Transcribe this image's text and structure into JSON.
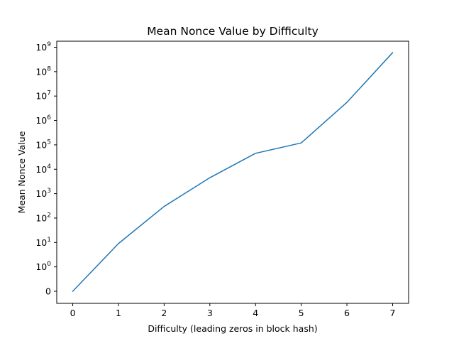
{
  "chart_data": {
    "type": "line",
    "title": "Mean Nonce Value by Difficulty",
    "xlabel": "Difficulty (leading zeros in block hash)",
    "ylabel": "Mean Nonce Value",
    "yscale": "symlog",
    "xlim": [
      -0.35,
      7.35
    ],
    "x_ticks": [
      "0",
      "1",
      "2",
      "3",
      "4",
      "5",
      "6",
      "7"
    ],
    "y_ticks": [
      {
        "base": "0",
        "exp": ""
      },
      {
        "base": "10",
        "exp": "0"
      },
      {
        "base": "10",
        "exp": "1"
      },
      {
        "base": "10",
        "exp": "2"
      },
      {
        "base": "10",
        "exp": "3"
      },
      {
        "base": "10",
        "exp": "4"
      },
      {
        "base": "10",
        "exp": "5"
      },
      {
        "base": "10",
        "exp": "6"
      },
      {
        "base": "10",
        "exp": "7"
      },
      {
        "base": "10",
        "exp": "8"
      },
      {
        "base": "10",
        "exp": "9"
      }
    ],
    "grid": false,
    "series": [
      {
        "color": "#1f77b4",
        "x": [
          0,
          1,
          2,
          3,
          4,
          5,
          6,
          7
        ],
        "y": [
          0,
          9,
          300,
          4500,
          45000,
          120000,
          5500000,
          600000000
        ]
      }
    ]
  }
}
